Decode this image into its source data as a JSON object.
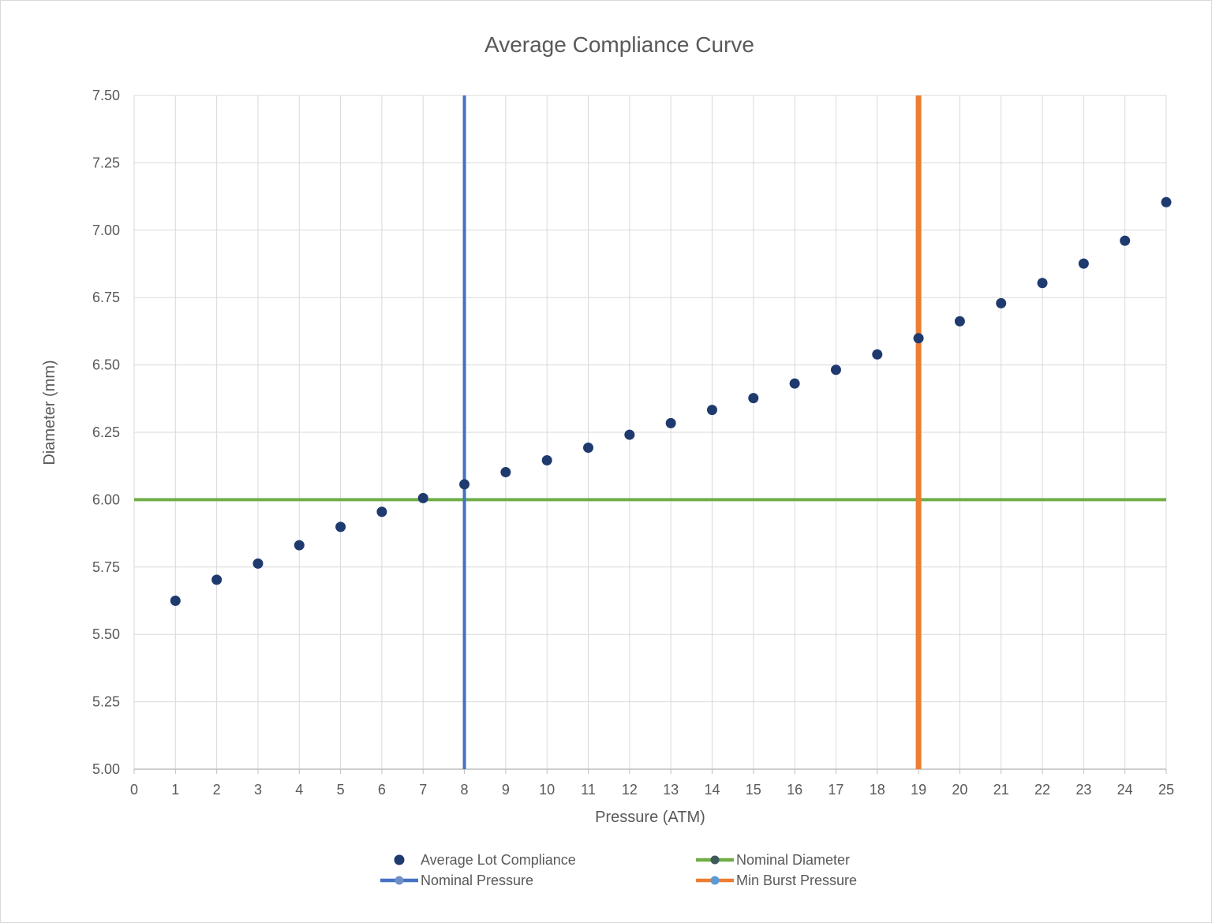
{
  "chart_data": {
    "type": "scatter",
    "title": "Average Compliance Curve",
    "xlabel": "Pressure (ATM)",
    "ylabel": "Diameter (mm)",
    "xlim": [
      0,
      25
    ],
    "ylim": [
      5.0,
      7.5
    ],
    "x_ticks": [
      "0",
      "1",
      "2",
      "3",
      "4",
      "5",
      "6",
      "7",
      "8",
      "9",
      "10",
      "11",
      "12",
      "13",
      "14",
      "15",
      "16",
      "17",
      "18",
      "19",
      "20",
      "21",
      "22",
      "23",
      "24",
      "25"
    ],
    "y_ticks": [
      "5.00",
      "5.25",
      "5.50",
      "5.75",
      "6.00",
      "6.25",
      "6.50",
      "6.75",
      "7.00",
      "7.25",
      "7.50"
    ],
    "grid": true,
    "legend_position": "bottom",
    "series": [
      {
        "name": "Average Lot Compliance",
        "kind": "markers",
        "color": "#1f3a6e",
        "x": [
          1,
          2,
          3,
          4,
          5,
          6,
          7,
          8,
          9,
          10,
          11,
          12,
          13,
          14,
          15,
          16,
          17,
          18,
          19,
          20,
          21,
          22,
          23,
          24,
          25
        ],
        "y": [
          5.625,
          5.703,
          5.763,
          5.831,
          5.899,
          5.955,
          6.006,
          6.057,
          6.102,
          6.146,
          6.193,
          6.241,
          6.284,
          6.333,
          6.377,
          6.431,
          6.482,
          6.539,
          6.599,
          6.662,
          6.729,
          6.804,
          6.876,
          6.961,
          7.104
        ]
      },
      {
        "name": "Nominal Diameter",
        "kind": "hline",
        "color": "#70ad47",
        "x": [
          0,
          25
        ],
        "y": [
          6.0,
          6.0
        ]
      },
      {
        "name": "Nominal Pressure",
        "kind": "vline",
        "color": "#4472c4",
        "x": [
          8,
          8
        ],
        "y": [
          5.0,
          7.5
        ]
      },
      {
        "name": "Min Burst Pressure",
        "kind": "vline",
        "color": "#ed7d31",
        "x": [
          19,
          19
        ],
        "y": [
          5.0,
          7.5
        ]
      }
    ]
  }
}
